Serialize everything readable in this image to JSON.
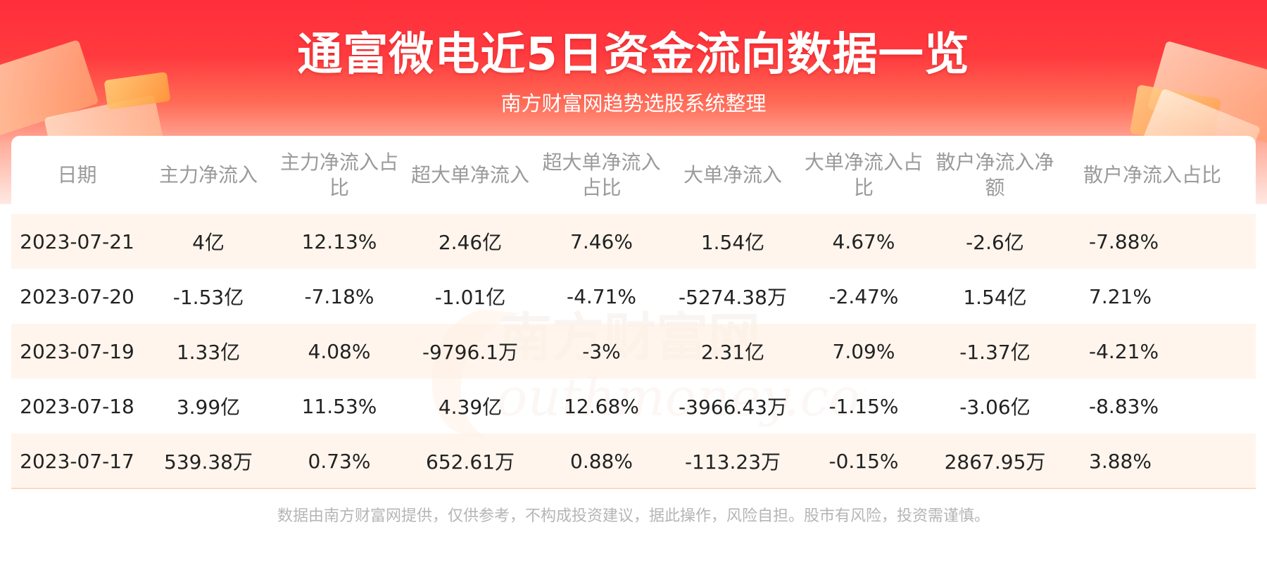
{
  "header": {
    "title": "通富微电近5日资金流向数据一览",
    "subtitle": "南方财富网趋势选股系统整理"
  },
  "table": {
    "columns": [
      "日期",
      "主力净流入",
      "主力净流入占比",
      "超大单净流入",
      "超大单净流入占比",
      "大单净流入",
      "大单净流入占比",
      "散户净流入净额",
      "散户净流入占比"
    ],
    "rows": [
      [
        "2023-07-21",
        "4亿",
        "12.13%",
        "2.46亿",
        "7.46%",
        "1.54亿",
        "4.67%",
        "-2.6亿",
        "-7.88%"
      ],
      [
        "2023-07-20",
        "-1.53亿",
        "-7.18%",
        "-1.01亿",
        "-4.71%",
        "-5274.38万",
        "-2.47%",
        "1.54亿",
        "7.21%"
      ],
      [
        "2023-07-19",
        "1.33亿",
        "4.08%",
        "-9796.1万",
        "-3%",
        "2.31亿",
        "7.09%",
        "-1.37亿",
        "-4.21%"
      ],
      [
        "2023-07-18",
        "3.99亿",
        "11.53%",
        "4.39亿",
        "12.68%",
        "-3966.43万",
        "-1.15%",
        "-3.06亿",
        "-8.83%"
      ],
      [
        "2023-07-17",
        "539.38万",
        "0.73%",
        "652.61万",
        "0.88%",
        "-113.23万",
        "-0.15%",
        "2867.95万",
        "3.88%"
      ]
    ]
  },
  "watermark": {
    "text": "南方财富网",
    "domain": "outhmoney.com"
  },
  "footer": {
    "disclaimer": "数据由南方财富网提供，仅供参考，不构成投资建议，据此操作，风险自担。股市有风险，投资需谨慎。"
  },
  "colors": {
    "banner_red": "#ff2e3a",
    "row_highlight": "#fff3ea",
    "header_text": "#9a9a9a",
    "cell_text": "#222222"
  }
}
